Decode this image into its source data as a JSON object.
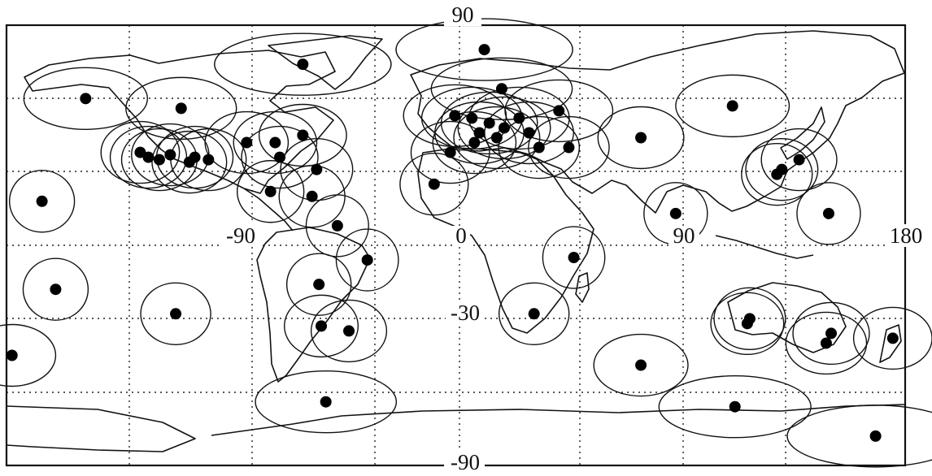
{
  "map": {
    "axis_labels": {
      "lat_top": "90",
      "lat_bottom": "-90",
      "lat_neg30": "-30",
      "lon_neg90": "-90",
      "lon_0": "0",
      "lon_90": "90",
      "lon_180": "180"
    },
    "grid": {
      "lon_step": 30,
      "lat_step": 30,
      "style": "dotted"
    },
    "stations": [
      {
        "lon": -151,
        "lat": 60
      },
      {
        "lon": -116,
        "lat": 56
      },
      {
        "lon": -68,
        "lat": 74
      },
      {
        "lon": -131,
        "lat": 38
      },
      {
        "lon": -128,
        "lat": 36
      },
      {
        "lon": -124,
        "lat": 35
      },
      {
        "lon": -120,
        "lat": 37
      },
      {
        "lon": -113,
        "lat": 34
      },
      {
        "lon": -111,
        "lat": 36
      },
      {
        "lon": -106,
        "lat": 35
      },
      {
        "lon": -92,
        "lat": 42
      },
      {
        "lon": -80,
        "lat": 42
      },
      {
        "lon": -78,
        "lat": 36
      },
      {
        "lon": -68,
        "lat": 45
      },
      {
        "lon": -62,
        "lat": 31
      },
      {
        "lon": -82,
        "lat": 22
      },
      {
        "lon": -64,
        "lat": 20
      },
      {
        "lon": -53,
        "lat": 8
      },
      {
        "lon": -40,
        "lat": -6
      },
      {
        "lon": -61,
        "lat": -16
      },
      {
        "lon": -60,
        "lat": -33
      },
      {
        "lon": -48,
        "lat": -35
      },
      {
        "lon": -167,
        "lat": 18
      },
      {
        "lon": -162,
        "lat": -18
      },
      {
        "lon": -118,
        "lat": -28
      },
      {
        "lon": -178,
        "lat": -45
      },
      {
        "lon": -58,
        "lat": -64
      },
      {
        "lon": -11,
        "lat": 25
      },
      {
        "lon": 10,
        "lat": 80
      },
      {
        "lon": 17,
        "lat": 64
      },
      {
        "lon": -2,
        "lat": 53
      },
      {
        "lon": 5,
        "lat": 52
      },
      {
        "lon": 12,
        "lat": 50
      },
      {
        "lon": 18,
        "lat": 48
      },
      {
        "lon": 24,
        "lat": 52
      },
      {
        "lon": 28,
        "lat": 46
      },
      {
        "lon": 15,
        "lat": 44
      },
      {
        "lon": 8,
        "lat": 46
      },
      {
        "lon": -4,
        "lat": 38
      },
      {
        "lon": 6,
        "lat": 42
      },
      {
        "lon": 32,
        "lat": 40
      },
      {
        "lon": 40,
        "lat": 55
      },
      {
        "lon": 44,
        "lat": 40
      },
      {
        "lon": 46,
        "lat": -5
      },
      {
        "lon": 30,
        "lat": -28
      },
      {
        "lon": 73,
        "lat": 44
      },
      {
        "lon": 110,
        "lat": 57
      },
      {
        "lon": 87,
        "lat": 13
      },
      {
        "lon": 137,
        "lat": 35
      },
      {
        "lon": 130,
        "lat": 31
      },
      {
        "lon": 128,
        "lat": 29
      },
      {
        "lon": 149,
        "lat": 13
      },
      {
        "lon": 116,
        "lat": -32
      },
      {
        "lon": 117,
        "lat": -30
      },
      {
        "lon": 150,
        "lat": -36
      },
      {
        "lon": 148,
        "lat": -40
      },
      {
        "lon": 175,
        "lat": -38
      },
      {
        "lon": 73,
        "lat": -49
      },
      {
        "lon": 111,
        "lat": -66
      },
      {
        "lon": 168,
        "lat": -78
      }
    ]
  }
}
